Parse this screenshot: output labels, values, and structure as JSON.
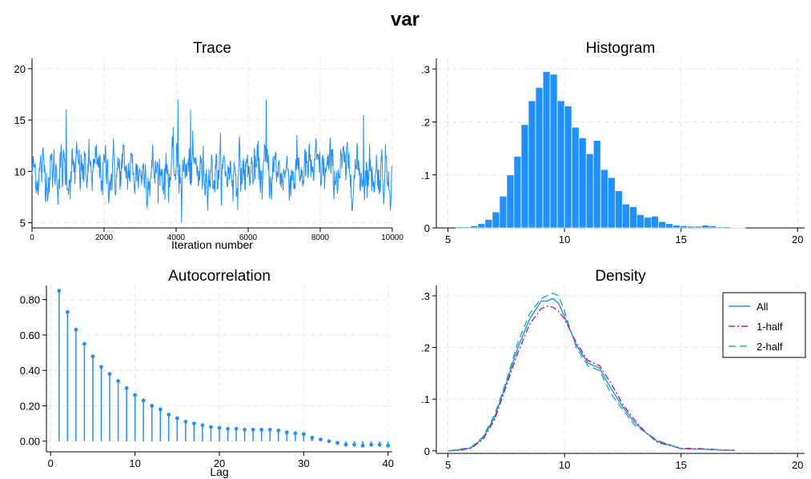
{
  "figure": {
    "title": "var"
  },
  "colors": {
    "series": "#1e90ff",
    "half1": "#c71585",
    "half2": "#20b2aa",
    "grid": "#e6e6e6"
  },
  "chart_data": [
    {
      "id": "trace",
      "type": "line",
      "title": "Trace",
      "xlabel": "Iteration number",
      "ylabel": "",
      "xlim": [
        0,
        10000
      ],
      "ylim": [
        4.5,
        21
      ],
      "xticks": [
        0,
        2000,
        4000,
        6000,
        8000,
        10000
      ],
      "yticks": [
        5,
        10,
        15,
        20
      ],
      "grid": true,
      "n_points": 10000,
      "level": 10,
      "range_approx": [
        5,
        17
      ],
      "notable_peaks": [
        {
          "x": 950,
          "y": 16
        },
        {
          "x": 4050,
          "y": 17
        },
        {
          "x": 4400,
          "y": 16
        },
        {
          "x": 6500,
          "y": 17
        },
        {
          "x": 9200,
          "y": 15.5
        }
      ],
      "notable_troughs": [
        {
          "x": 4150,
          "y": 5
        }
      ]
    },
    {
      "id": "histogram",
      "type": "bar",
      "title": "Histogram",
      "xlabel": "",
      "ylabel": "",
      "xlim": [
        4.5,
        20.3
      ],
      "ylim": [
        0,
        0.32
      ],
      "xticks": [
        5,
        10,
        15,
        20
      ],
      "yticks": [
        0,
        0.1,
        0.2,
        0.3
      ],
      "ytick_labels": [
        "0",
        ".1",
        ".2",
        ".3"
      ],
      "grid": true,
      "bin_width": 0.31,
      "bin_start": 5.35,
      "values": [
        0.002,
        0.002,
        0.004,
        0.008,
        0.016,
        0.03,
        0.06,
        0.1,
        0.135,
        0.195,
        0.24,
        0.265,
        0.295,
        0.29,
        0.24,
        0.23,
        0.19,
        0.17,
        0.14,
        0.165,
        0.11,
        0.095,
        0.07,
        0.045,
        0.04,
        0.025,
        0.02,
        0.022,
        0.012,
        0.008,
        0.005,
        0.004,
        0.003,
        0.003,
        0.005,
        0.004,
        0.002,
        0.002,
        0.001,
        0.001
      ]
    },
    {
      "id": "autocorrelation",
      "type": "stem",
      "title": "Autocorrelation",
      "xlabel": "Lag",
      "ylabel": "",
      "xlim": [
        -0.5,
        40.5
      ],
      "ylim": [
        -0.06,
        0.88
      ],
      "xticks": [
        0,
        10,
        20,
        30,
        40
      ],
      "yticks": [
        0,
        0.2,
        0.4,
        0.6,
        0.8
      ],
      "ytick_labels": [
        "0.00",
        "0.20",
        "0.40",
        "0.60",
        "0.80"
      ],
      "grid": true,
      "x": [
        1,
        2,
        3,
        4,
        5,
        6,
        7,
        8,
        9,
        10,
        11,
        12,
        13,
        14,
        15,
        16,
        17,
        18,
        19,
        20,
        21,
        22,
        23,
        24,
        25,
        26,
        27,
        28,
        29,
        30,
        31,
        32,
        33,
        34,
        35,
        36,
        37,
        38,
        39,
        40
      ],
      "values": [
        0.85,
        0.73,
        0.63,
        0.55,
        0.48,
        0.42,
        0.38,
        0.34,
        0.3,
        0.26,
        0.23,
        0.2,
        0.18,
        0.15,
        0.13,
        0.11,
        0.1,
        0.09,
        0.08,
        0.075,
        0.07,
        0.07,
        0.065,
        0.065,
        0.065,
        0.065,
        0.06,
        0.05,
        0.045,
        0.04,
        0.02,
        0.01,
        0.0,
        -0.01,
        -0.02,
        -0.02,
        -0.025,
        -0.02,
        -0.02,
        -0.025
      ]
    },
    {
      "id": "density",
      "type": "line",
      "title": "Density",
      "xlabel": "",
      "ylabel": "",
      "xlim": [
        4.5,
        20.3
      ],
      "ylim": [
        -0.005,
        0.32
      ],
      "xticks": [
        5,
        10,
        15,
        20
      ],
      "yticks": [
        0,
        0.1,
        0.2,
        0.3
      ],
      "ytick_labels": [
        "0",
        ".1",
        ".2",
        ".3"
      ],
      "grid": true,
      "legend_position": "top-right",
      "x": [
        5,
        5.5,
        6,
        6.5,
        7,
        7.5,
        8,
        8.5,
        9,
        9.25,
        9.5,
        9.75,
        10,
        10.5,
        11,
        11.5,
        12,
        12.5,
        13,
        13.5,
        14,
        15,
        16,
        17,
        17.3
      ],
      "series": [
        {
          "name": "All",
          "values": [
            0.0,
            0.002,
            0.006,
            0.025,
            0.065,
            0.13,
            0.2,
            0.255,
            0.29,
            0.29,
            0.295,
            0.285,
            0.26,
            0.205,
            0.17,
            0.16,
            0.12,
            0.085,
            0.055,
            0.035,
            0.018,
            0.004,
            0.003,
            0.001,
            0.001
          ]
        },
        {
          "name": "1-half",
          "values": [
            0.0,
            0.001,
            0.005,
            0.022,
            0.06,
            0.125,
            0.19,
            0.245,
            0.275,
            0.28,
            0.278,
            0.27,
            0.255,
            0.21,
            0.175,
            0.165,
            0.13,
            0.09,
            0.06,
            0.035,
            0.016,
            0.005,
            0.004,
            0.001,
            0.001
          ]
        },
        {
          "name": "2-half",
          "values": [
            0.0,
            0.003,
            0.007,
            0.027,
            0.07,
            0.135,
            0.21,
            0.265,
            0.295,
            0.3,
            0.305,
            0.3,
            0.27,
            0.2,
            0.165,
            0.155,
            0.11,
            0.08,
            0.05,
            0.035,
            0.02,
            0.004,
            0.003,
            0.001,
            0.001
          ]
        }
      ]
    }
  ]
}
